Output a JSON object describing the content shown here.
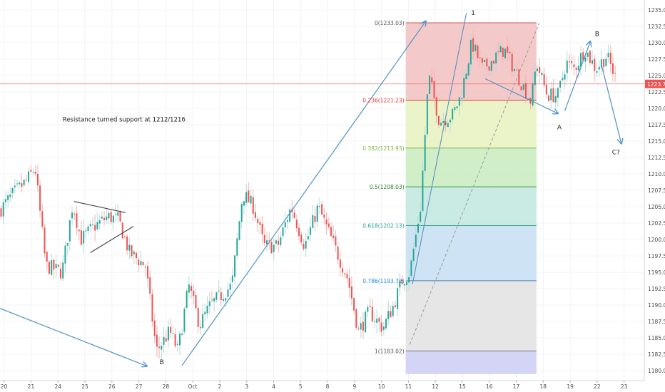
{
  "chart_data": {
    "type": "candlestick",
    "y_axis": {
      "range": [
        1178.5,
        1236.5
      ],
      "ticks": [
        1180.0,
        1182.5,
        1185.0,
        1187.5,
        1190.0,
        1192.5,
        1195.0,
        1197.5,
        1200.0,
        1202.5,
        1205.0,
        1207.5,
        1210.0,
        1212.5,
        1215.0,
        1217.5,
        1220.0,
        1222.5,
        1225.0,
        1227.5,
        1230.0,
        1232.5,
        1235.0
      ],
      "current_price": 1223.71,
      "current_price_label": "1223.71"
    },
    "x_axis": {
      "range": [
        0,
        23.9
      ],
      "ticks": [
        {
          "pos": 0.15,
          "label": "20"
        },
        {
          "pos": 1.15,
          "label": "21"
        },
        {
          "pos": 2.15,
          "label": "24"
        },
        {
          "pos": 3.15,
          "label": "25"
        },
        {
          "pos": 4.15,
          "label": "26"
        },
        {
          "pos": 5.15,
          "label": "27"
        },
        {
          "pos": 6.15,
          "label": "28"
        },
        {
          "pos": 7.15,
          "label": "Oct"
        },
        {
          "pos": 8.15,
          "label": "2"
        },
        {
          "pos": 9.15,
          "label": "3"
        },
        {
          "pos": 10.15,
          "label": "4"
        },
        {
          "pos": 11.15,
          "label": "5"
        },
        {
          "pos": 12.15,
          "label": "8"
        },
        {
          "pos": 13.15,
          "label": "9"
        },
        {
          "pos": 14.15,
          "label": "10"
        },
        {
          "pos": 15.15,
          "label": "11"
        },
        {
          "pos": 16.15,
          "label": "12"
        },
        {
          "pos": 17.15,
          "label": "15"
        },
        {
          "pos": 18.15,
          "label": "16"
        },
        {
          "pos": 19.15,
          "label": "17"
        },
        {
          "pos": 20.15,
          "label": "18"
        },
        {
          "pos": 21.15,
          "label": "19"
        },
        {
          "pos": 22.15,
          "label": "22"
        },
        {
          "pos": 23.15,
          "label": "23"
        }
      ]
    },
    "price_path": [
      [
        0.0,
        1204.5
      ],
      [
        0.5,
        1207
      ],
      [
        1.0,
        1209
      ],
      [
        1.3,
        1211
      ],
      [
        1.7,
        1196
      ],
      [
        2.3,
        1195
      ],
      [
        2.7,
        1205.5
      ],
      [
        3.0,
        1200
      ],
      [
        3.5,
        1202
      ],
      [
        4.0,
        1203.5
      ],
      [
        4.4,
        1203
      ],
      [
        4.8,
        1198
      ],
      [
        5.4,
        1196
      ],
      [
        5.8,
        1183
      ],
      [
        6.3,
        1186
      ],
      [
        6.6,
        1183
      ],
      [
        7.0,
        1193
      ],
      [
        7.4,
        1187
      ],
      [
        7.8,
        1190
      ],
      [
        8.6,
        1193
      ],
      [
        9.0,
        1207
      ],
      [
        9.4,
        1205
      ],
      [
        9.8,
        1199
      ],
      [
        10.3,
        1199
      ],
      [
        10.8,
        1205
      ],
      [
        11.3,
        1199
      ],
      [
        11.8,
        1205
      ],
      [
        12.3,
        1200
      ],
      [
        12.9,
        1194
      ],
      [
        13.3,
        1186
      ],
      [
        13.7,
        1189
      ],
      [
        14.2,
        1186.5
      ],
      [
        14.6,
        1190
      ],
      [
        14.9,
        1193.7
      ],
      [
        15.2,
        1195
      ],
      [
        15.6,
        1205
      ],
      [
        15.9,
        1225
      ],
      [
        16.3,
        1218
      ],
      [
        16.8,
        1219
      ],
      [
        17.1,
        1222
      ],
      [
        17.5,
        1230
      ],
      [
        17.9,
        1226
      ],
      [
        18.3,
        1227.5
      ],
      [
        18.7,
        1229
      ],
      [
        19.2,
        1225
      ],
      [
        19.7,
        1221
      ],
      [
        19.9,
        1227
      ],
      [
        20.3,
        1222
      ],
      [
        20.7,
        1222
      ],
      [
        21.0,
        1227
      ],
      [
        21.3,
        1226
      ],
      [
        21.7,
        1229
      ],
      [
        22.1,
        1226
      ],
      [
        22.5,
        1228
      ],
      [
        22.9,
        1224
      ]
    ],
    "fib_retracement": {
      "x_range": [
        15.05,
        19.9
      ],
      "levels": [
        {
          "ratio": "0",
          "price": 1233.03,
          "label": "0(1233.03)",
          "line": "#c85a5a",
          "fill": "#f2c0c0",
          "text": "#555555"
        },
        {
          "ratio": "0.236",
          "price": 1221.23,
          "label": "0.236(1221.23)",
          "line": "#d23c3c",
          "fill": "#e8f1c0",
          "text": "#e53935"
        },
        {
          "ratio": "0.382",
          "price": 1213.93,
          "label": "0.382(1213.93)",
          "line": "#7fb53d",
          "fill": "#c8ecc0",
          "text": "#7cb342"
        },
        {
          "ratio": "0.5",
          "price": 1208.03,
          "label": "0.5(1208.03)",
          "line": "#3a9a4a",
          "fill": "#bfe8de",
          "text": "#2e7d32"
        },
        {
          "ratio": "0.618",
          "price": 1202.13,
          "label": "0.618(1202.13)",
          "line": "#3aa38e",
          "fill": "#c6def2",
          "text": "#26a69a"
        },
        {
          "ratio": "0.786",
          "price": 1193.72,
          "label": "0.786(1193.72)",
          "line": "#4a7fb5",
          "fill": "#e2e2e2",
          "text": "#1e88e5"
        },
        {
          "ratio": "1",
          "price": 1183.02,
          "label": "1(1183.02)",
          "line": "#7a7a7a",
          "fill": "#ccccf4",
          "text": "#555555"
        }
      ],
      "bottom_price": 1179.5
    },
    "trend_arrows": [
      {
        "from": [
          0.0,
          1189.5
        ],
        "to": [
          5.45,
          1180.7
        ]
      },
      {
        "from": [
          6.75,
          1180.8
        ],
        "to": [
          15.8,
          1233.3
        ]
      },
      {
        "from": [
          18.0,
          1224.5
        ],
        "to": [
          20.7,
          1219.2
        ]
      },
      {
        "from": [
          20.95,
          1219.6
        ],
        "to": [
          21.9,
          1230.2
        ]
      },
      {
        "from": [
          22.3,
          1226.8
        ],
        "to": [
          23.05,
          1214.6
        ]
      }
    ],
    "trend_lines": [
      {
        "from": [
          15.3,
          1193.2
        ],
        "to": [
          17.3,
          1234.5
        ],
        "color": "#5b8fbf",
        "dashed": false
      },
      {
        "from": [
          15.2,
          1184.0
        ],
        "to": [
          20.0,
          1233.0
        ],
        "color": "#9e9e9e",
        "dashed": true
      },
      {
        "from": [
          2.75,
          1205.8
        ],
        "to": [
          4.65,
          1204.1
        ],
        "color": "#444444",
        "dashed": false
      },
      {
        "from": [
          3.35,
          1198.0
        ],
        "to": [
          4.95,
          1202.0
        ],
        "color": "#444444",
        "dashed": false
      }
    ],
    "wave_labels": [
      {
        "text": "1",
        "x": 17.55,
        "price": 1234.2
      },
      {
        "text": "A",
        "x": 20.75,
        "price": 1216.8
      },
      {
        "text": "B",
        "x": 22.15,
        "price": 1231.0
      },
      {
        "text": "B",
        "x": 6.0,
        "price": 1181.0
      },
      {
        "text": "C?",
        "x": 22.85,
        "price": 1213.0
      }
    ],
    "annotations": [
      {
        "text": "Resistance turned support at 1212/1216",
        "x": 4.6,
        "price": 1218.0
      }
    ],
    "colors": {
      "bull": "#26a69a",
      "bear": "#ef5350",
      "wick_bull": "#b6dcd6",
      "wick_bear": "#f4b4b4",
      "arrows": "#4f93c4",
      "price_line": "#ef5350"
    }
  }
}
